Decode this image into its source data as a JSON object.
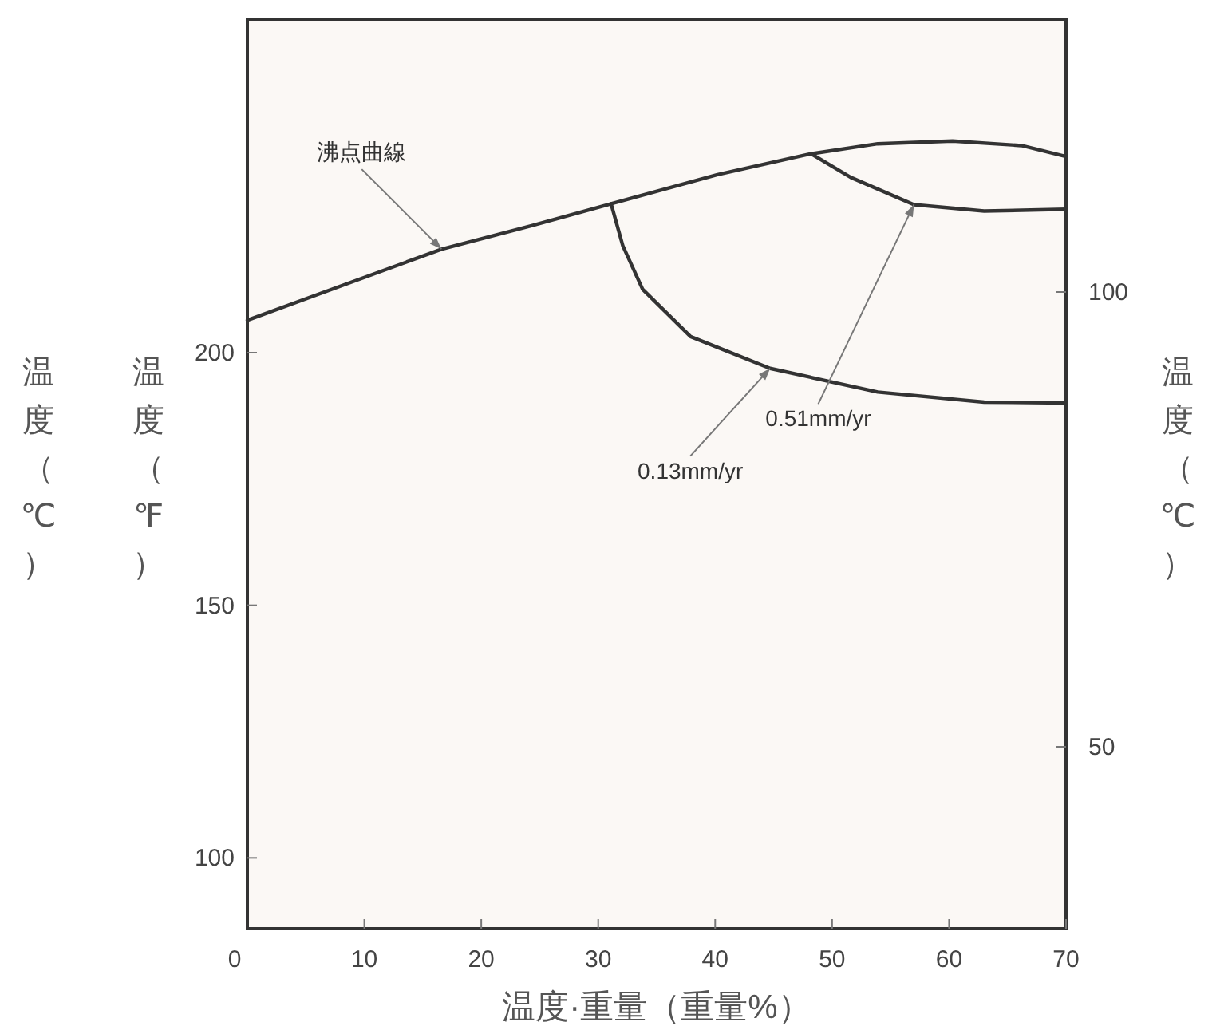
{
  "chart_data": {
    "type": "line",
    "xlabel": "温度·重量（重量%）",
    "ylabel": "温度（℉）",
    "y2label": "温度（℃）",
    "xlim": [
      0,
      70
    ],
    "xticks": [
      0,
      10,
      20,
      30,
      40,
      50,
      60,
      70
    ],
    "ylim": [
      86,
      266
    ],
    "yticks": [
      100,
      150,
      200
    ],
    "y2lim": [
      30,
      130
    ],
    "y2ticks": [
      50,
      100
    ],
    "grid": false,
    "line_style": "solid",
    "marker": "none",
    "series": [
      {
        "color": "#333333",
        "axis": "y2",
        "x": [
          0,
          8.5,
          16.6,
          24.3,
          31.1,
          40.2,
          48.2,
          53.9,
          60.3,
          66.2,
          70
        ],
        "values": [
          96.9,
          100.9,
          104.7,
          107.3,
          109.7,
          112.9,
          115.2,
          116.3,
          116.6,
          116.1,
          114.9
        ]
      },
      {
        "color": "#333333",
        "axis": "y2",
        "x": [
          31.1,
          32.1,
          33.8,
          37.9,
          44.7,
          53.9,
          63,
          70
        ],
        "values": [
          109.7,
          105.1,
          100.3,
          95.1,
          91.6,
          89.0,
          87.9,
          87.8
        ]
      },
      {
        "color": "#333333",
        "axis": "y2",
        "x": [
          48.2,
          51.6,
          57,
          63,
          70
        ],
        "values": [
          115.2,
          112.6,
          109.6,
          108.9,
          109.1
        ]
      }
    ],
    "annotations": [
      "温度（℃）",
      {
        "text": "沸点曲線",
        "x": 16.6,
        "y": 220.5
      },
      {
        "text": "0.13mm/yr",
        "x": 44.7,
        "y": 196.9
      },
      {
        "text": "0.51mm/yr",
        "x": 57,
        "y": 229.3
      }
    ]
  }
}
